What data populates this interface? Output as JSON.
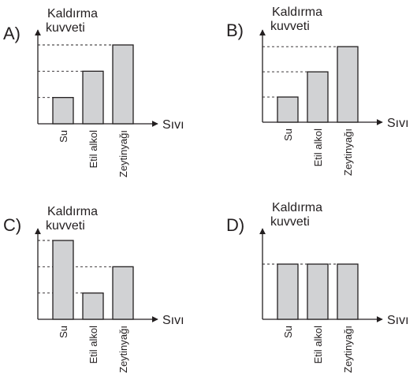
{
  "chart_data": [
    {
      "type": "bar",
      "option": "A)",
      "ylabel": [
        "Kaldırma",
        "kuvveti"
      ],
      "xlabel": "Sıvı",
      "categories": [
        "Su",
        "Etil alkol",
        "Zeytinyağı"
      ],
      "values": [
        1,
        2,
        3
      ],
      "ylim": [
        0,
        3.6
      ]
    },
    {
      "type": "bar",
      "option": "B)",
      "ylabel": [
        "Kaldırma",
        "kuvveti"
      ],
      "xlabel": "Sıvı",
      "categories": [
        "Su",
        "Etil alkol",
        "Zeytinyağı"
      ],
      "values": [
        1,
        2,
        3
      ],
      "ylim": [
        0,
        3.6
      ]
    },
    {
      "type": "bar",
      "option": "C)",
      "ylabel": [
        "Kaldırma",
        "kuvveti"
      ],
      "xlabel": "Sıvı",
      "categories": [
        "Su",
        "Etil alkol",
        "Zeytinyağı"
      ],
      "values": [
        3,
        1,
        2
      ],
      "ylim": [
        0,
        3.6
      ]
    },
    {
      "type": "bar",
      "option": "D)",
      "ylabel": [
        "Kaldırma",
        "kuvveti"
      ],
      "xlabel": "Sıvı",
      "categories": [
        "Su",
        "Etil alkol",
        "Zeytinyağı"
      ],
      "values": [
        1,
        1,
        1
      ],
      "ylim": [
        0,
        1.4
      ]
    }
  ],
  "colors": {
    "bar_fill": "#d1d2d4",
    "ink": "#231f20"
  }
}
